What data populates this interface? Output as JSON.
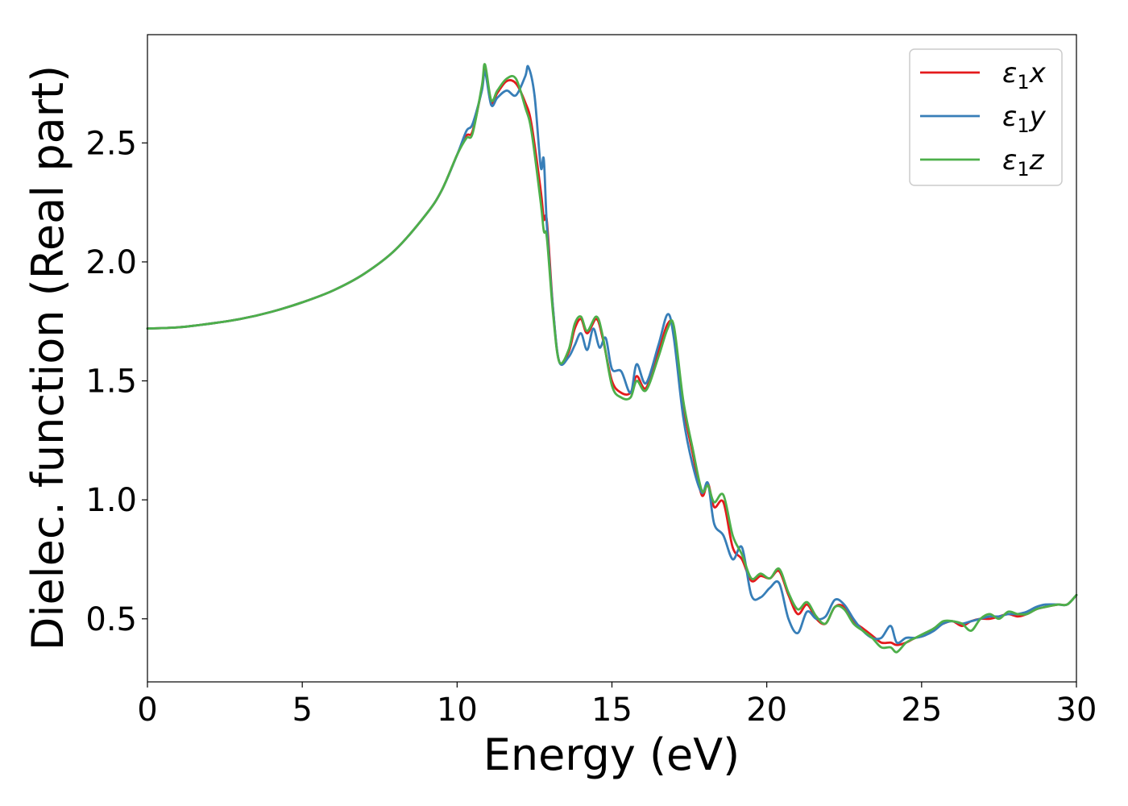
{
  "chart_data": {
    "type": "line",
    "xlabel": "Energy (eV)",
    "ylabel": "Dielec. function (Real part)",
    "xlim": [
      0,
      30
    ],
    "ylim": [
      0.235,
      2.955
    ],
    "xticks": [
      0,
      5,
      10,
      15,
      20,
      25,
      30
    ],
    "xtick_labels": [
      "0",
      "5",
      "10",
      "15",
      "20",
      "25",
      "30"
    ],
    "yticks": [
      0.5,
      1.0,
      1.5,
      2.0,
      2.5
    ],
    "ytick_labels": [
      "0.5",
      "1.0",
      "1.5",
      "2.0",
      "2.5"
    ],
    "grid": false,
    "legend_position": "top-right",
    "series": [
      {
        "name": "ε1x",
        "legend_base": "ε",
        "legend_sub": "1",
        "legend_suffix": "x",
        "color": "#e41a1c",
        "x": [
          0,
          1,
          2,
          3,
          4,
          5,
          6,
          7,
          8,
          9,
          9.5,
          10,
          10.3,
          10.5,
          10.8,
          10.9,
          11.1,
          11.3,
          11.6,
          11.9,
          12.2,
          12.4,
          12.7,
          12.8,
          12.9,
          13.1,
          13.3,
          13.6,
          13.8,
          14.0,
          14.2,
          14.5,
          14.7,
          15.0,
          15.3,
          15.6,
          15.8,
          16.1,
          16.5,
          16.8,
          17.0,
          17.3,
          17.6,
          17.9,
          18.1,
          18.3,
          18.6,
          18.9,
          19.2,
          19.5,
          19.8,
          20.1,
          20.4,
          20.7,
          21.0,
          21.3,
          21.6,
          21.9,
          22.2,
          22.5,
          22.8,
          23.1,
          23.4,
          23.7,
          24.0,
          24.2,
          24.5,
          24.8,
          25.1,
          25.4,
          25.7,
          26.0,
          26.3,
          26.6,
          26.9,
          27.2,
          27.5,
          27.8,
          28.1,
          28.4,
          28.7,
          29.0,
          29.4,
          29.7,
          30.0
        ],
        "y": [
          1.72,
          1.725,
          1.74,
          1.76,
          1.79,
          1.83,
          1.88,
          1.95,
          2.05,
          2.2,
          2.3,
          2.45,
          2.53,
          2.55,
          2.73,
          2.81,
          2.67,
          2.71,
          2.76,
          2.75,
          2.67,
          2.58,
          2.3,
          2.18,
          2.17,
          1.8,
          1.58,
          1.62,
          1.72,
          1.76,
          1.7,
          1.76,
          1.68,
          1.5,
          1.45,
          1.45,
          1.52,
          1.47,
          1.62,
          1.74,
          1.71,
          1.4,
          1.2,
          1.02,
          1.07,
          0.97,
          0.99,
          0.8,
          0.75,
          0.66,
          0.68,
          0.67,
          0.7,
          0.6,
          0.52,
          0.56,
          0.5,
          0.48,
          0.55,
          0.55,
          0.49,
          0.46,
          0.43,
          0.4,
          0.4,
          0.39,
          0.4,
          0.42,
          0.43,
          0.46,
          0.48,
          0.49,
          0.47,
          0.49,
          0.5,
          0.5,
          0.51,
          0.52,
          0.51,
          0.52,
          0.54,
          0.55,
          0.56,
          0.56,
          0.6
        ]
      },
      {
        "name": "ε1y",
        "legend_base": "ε",
        "legend_sub": "1",
        "legend_suffix": "y",
        "color": "#377eb8",
        "x": [
          0,
          1,
          2,
          3,
          4,
          5,
          6,
          7,
          8,
          9,
          9.5,
          10,
          10.3,
          10.5,
          10.8,
          10.9,
          11.1,
          11.3,
          11.6,
          11.9,
          12.2,
          12.3,
          12.5,
          12.7,
          12.8,
          12.9,
          13.1,
          13.3,
          13.6,
          13.8,
          14.0,
          14.2,
          14.4,
          14.6,
          14.8,
          15.0,
          15.3,
          15.6,
          15.8,
          16.1,
          16.5,
          16.8,
          17.0,
          17.3,
          17.6,
          17.9,
          18.1,
          18.3,
          18.6,
          18.9,
          19.2,
          19.5,
          19.8,
          20.1,
          20.4,
          20.7,
          21.0,
          21.3,
          21.6,
          21.9,
          22.2,
          22.5,
          22.8,
          23.1,
          23.4,
          23.7,
          24.0,
          24.2,
          24.5,
          24.8,
          25.1,
          25.4,
          25.7,
          26.0,
          26.3,
          26.6,
          26.9,
          27.2,
          27.5,
          27.8,
          28.1,
          28.4,
          28.7,
          29.0,
          29.4,
          29.7,
          30.0
        ],
        "y": [
          1.72,
          1.725,
          1.74,
          1.76,
          1.79,
          1.83,
          1.88,
          1.95,
          2.05,
          2.2,
          2.3,
          2.45,
          2.55,
          2.58,
          2.72,
          2.8,
          2.66,
          2.69,
          2.72,
          2.7,
          2.78,
          2.82,
          2.7,
          2.4,
          2.43,
          2.15,
          1.8,
          1.58,
          1.6,
          1.65,
          1.7,
          1.63,
          1.72,
          1.64,
          1.68,
          1.55,
          1.54,
          1.45,
          1.57,
          1.49,
          1.65,
          1.78,
          1.68,
          1.35,
          1.15,
          1.03,
          1.07,
          0.9,
          0.85,
          0.75,
          0.8,
          0.6,
          0.59,
          0.63,
          0.65,
          0.5,
          0.44,
          0.53,
          0.5,
          0.51,
          0.58,
          0.56,
          0.5,
          0.45,
          0.42,
          0.42,
          0.47,
          0.4,
          0.42,
          0.42,
          0.43,
          0.45,
          0.48,
          0.49,
          0.48,
          0.49,
          0.5,
          0.51,
          0.51,
          0.52,
          0.52,
          0.53,
          0.55,
          0.56,
          0.56,
          0.56,
          0.6
        ]
      },
      {
        "name": "ε1z",
        "legend_base": "ε",
        "legend_sub": "1",
        "legend_suffix": "z",
        "color": "#4daf4a",
        "x": [
          0,
          1,
          2,
          3,
          4,
          5,
          6,
          7,
          8,
          9,
          9.5,
          10,
          10.3,
          10.5,
          10.8,
          10.9,
          11.1,
          11.3,
          11.6,
          11.9,
          12.2,
          12.4,
          12.7,
          12.8,
          12.9,
          13.1,
          13.3,
          13.6,
          13.8,
          14.0,
          14.2,
          14.5,
          14.7,
          15.0,
          15.3,
          15.6,
          15.8,
          16.1,
          16.5,
          16.8,
          17.0,
          17.3,
          17.6,
          17.9,
          18.1,
          18.3,
          18.6,
          18.9,
          19.2,
          19.5,
          19.8,
          20.1,
          20.4,
          20.7,
          21.0,
          21.3,
          21.6,
          21.9,
          22.2,
          22.5,
          22.8,
          23.1,
          23.4,
          23.7,
          24.0,
          24.2,
          24.5,
          24.8,
          25.1,
          25.4,
          25.7,
          26.0,
          26.3,
          26.6,
          26.9,
          27.2,
          27.5,
          27.8,
          28.1,
          28.4,
          28.7,
          29.0,
          29.4,
          29.7,
          30.0
        ],
        "y": [
          1.72,
          1.725,
          1.74,
          1.76,
          1.79,
          1.83,
          1.88,
          1.95,
          2.05,
          2.2,
          2.3,
          2.45,
          2.52,
          2.54,
          2.74,
          2.83,
          2.68,
          2.72,
          2.77,
          2.77,
          2.65,
          2.55,
          2.25,
          2.13,
          2.1,
          1.78,
          1.58,
          1.63,
          1.74,
          1.77,
          1.71,
          1.77,
          1.69,
          1.48,
          1.43,
          1.43,
          1.5,
          1.46,
          1.6,
          1.72,
          1.73,
          1.42,
          1.22,
          1.04,
          1.06,
          0.99,
          1.02,
          0.85,
          0.77,
          0.67,
          0.69,
          0.67,
          0.71,
          0.61,
          0.54,
          0.57,
          0.51,
          0.48,
          0.55,
          0.54,
          0.48,
          0.45,
          0.42,
          0.38,
          0.38,
          0.36,
          0.4,
          0.42,
          0.44,
          0.46,
          0.49,
          0.49,
          0.48,
          0.45,
          0.5,
          0.52,
          0.5,
          0.53,
          0.52,
          0.52,
          0.54,
          0.55,
          0.56,
          0.56,
          0.6
        ]
      }
    ]
  }
}
